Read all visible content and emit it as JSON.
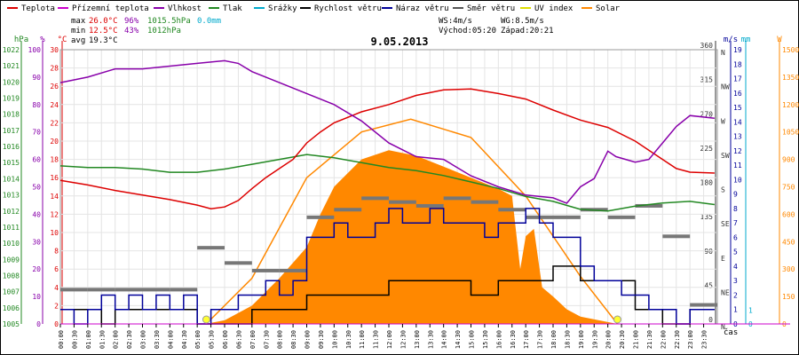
{
  "chart_data": {
    "type": "line",
    "title": "9.05.2013",
    "legend": [
      {
        "name": "Teplota",
        "color": "#dd0000"
      },
      {
        "name": "Přízemní teplota",
        "color": "#cc00cc"
      },
      {
        "name": "Vlhkost",
        "color": "#8800aa"
      },
      {
        "name": "Tlak",
        "color": "#228822"
      },
      {
        "name": "Srážky",
        "color": "#00aacc"
      },
      {
        "name": "Rychlost větru",
        "color": "#000000"
      },
      {
        "name": "Náraz větru",
        "color": "#000099"
      },
      {
        "name": "Směr větru",
        "color": "#555555"
      },
      {
        "name": "UV index",
        "color": "#dddd00"
      },
      {
        "name": "Solar",
        "color": "#ff8800"
      }
    ],
    "stats": {
      "max": {
        "label": "max",
        "temp": "26.0°C",
        "hum": "96%",
        "press": "1015.5hPa",
        "rain": "0.0mm"
      },
      "min": {
        "label": "min",
        "temp": "12.5°C",
        "hum": "43%",
        "press": "1012hPa"
      },
      "avg": {
        "label": "avg",
        "temp": "19.3°C"
      },
      "ws": "WS:4m/s",
      "wg": "WG:8.5m/s",
      "sunrise": "Východ:05:20",
      "sunset": "Západ:20:21"
    },
    "axes": {
      "hpa": {
        "label": "hPa",
        "ticks": [
          "1005",
          "1006",
          "1007",
          "1008",
          "1009",
          "1010",
          "1011",
          "1012",
          "1013",
          "1014",
          "1015",
          "1016",
          "1017",
          "1018",
          "1019",
          "1020",
          "1021",
          "1022"
        ]
      },
      "pct": {
        "label": "%",
        "ticks": [
          "0",
          "10",
          "20",
          "30",
          "40",
          "50",
          "60",
          "70",
          "80",
          "90",
          "100"
        ]
      },
      "degc": {
        "label": "°C",
        "ticks": [
          "0",
          "2",
          "4",
          "6",
          "8",
          "10",
          "12",
          "14",
          "16",
          "18",
          "20",
          "22",
          "24",
          "26",
          "28",
          "30"
        ]
      },
      "wdir": {
        "ticks": [
          "N",
          "NE",
          "E",
          "SE",
          "S",
          "SW",
          "W",
          "NW",
          "N"
        ],
        "degrees": [
          "0",
          "45",
          "90",
          "135",
          "180",
          "225",
          "270",
          "315",
          "360"
        ]
      },
      "ms": {
        "label": "m/s",
        "ticks": [
          "0",
          "1",
          "2",
          "3",
          "4",
          "5",
          "6",
          "7",
          "8",
          "9",
          "10",
          "11",
          "12",
          "13",
          "14",
          "15",
          "16",
          "17",
          "18",
          "19"
        ]
      },
      "mm": {
        "label": "mm",
        "ticks": [
          "0",
          "1"
        ]
      },
      "w": {
        "label": "W",
        "ticks": [
          "0",
          "150",
          "300",
          "450",
          "600",
          "750",
          "900",
          "1050",
          "1200",
          "1350",
          "1500"
        ]
      },
      "x": {
        "label": "čas",
        "ticks": [
          "00:00",
          "00:30",
          "01:00",
          "01:30",
          "02:00",
          "02:30",
          "03:00",
          "03:30",
          "04:00",
          "04:30",
          "05:00",
          "05:30",
          "06:00",
          "06:30",
          "07:00",
          "07:30",
          "08:00",
          "08:30",
          "09:00",
          "09:30",
          "10:00",
          "10:30",
          "11:00",
          "11:30",
          "12:00",
          "12:30",
          "13:00",
          "13:30",
          "14:00",
          "14:30",
          "15:00",
          "15:30",
          "16:00",
          "16:30",
          "17:00",
          "17:30",
          "18:00",
          "18:30",
          "19:00",
          "19:30",
          "20:00",
          "20:30",
          "21:00",
          "21:30",
          "22:00",
          "22:30",
          "23:00",
          "23:30"
        ]
      }
    },
    "x_unit": "hours",
    "series": [
      {
        "name": "Teplota",
        "unit": "°C",
        "color": "#dd0000",
        "points": [
          [
            0,
            15.7
          ],
          [
            1,
            15.2
          ],
          [
            2,
            14.6
          ],
          [
            3,
            14.1
          ],
          [
            4,
            13.6
          ],
          [
            5,
            13.0
          ],
          [
            5.5,
            12.6
          ],
          [
            6,
            12.8
          ],
          [
            6.5,
            13.5
          ],
          [
            7,
            14.8
          ],
          [
            7.5,
            16.0
          ],
          [
            8,
            17.0
          ],
          [
            8.5,
            18.0
          ],
          [
            9,
            19.8
          ],
          [
            9.5,
            21.0
          ],
          [
            10,
            22.0
          ],
          [
            11,
            23.2
          ],
          [
            12,
            24.0
          ],
          [
            13,
            25.0
          ],
          [
            14,
            25.6
          ],
          [
            15,
            25.7
          ],
          [
            16,
            25.2
          ],
          [
            17,
            24.6
          ],
          [
            18,
            23.4
          ],
          [
            19,
            22.3
          ],
          [
            20,
            21.5
          ],
          [
            21,
            20.0
          ],
          [
            22,
            18.0
          ],
          [
            22.5,
            17.0
          ],
          [
            23,
            16.6
          ],
          [
            23.9,
            16.5
          ]
        ]
      },
      {
        "name": "Vlhkost",
        "unit": "%",
        "color": "#8800aa",
        "points": [
          [
            0,
            88
          ],
          [
            1,
            90
          ],
          [
            2,
            93
          ],
          [
            3,
            93
          ],
          [
            4,
            94
          ],
          [
            5,
            95
          ],
          [
            6,
            96
          ],
          [
            6.5,
            95
          ],
          [
            7,
            92
          ],
          [
            8,
            88
          ],
          [
            9,
            84
          ],
          [
            10,
            80
          ],
          [
            11,
            74
          ],
          [
            12,
            66
          ],
          [
            13,
            61
          ],
          [
            14,
            60
          ],
          [
            15,
            54
          ],
          [
            16,
            50
          ],
          [
            17,
            47
          ],
          [
            18,
            46
          ],
          [
            18.5,
            44
          ],
          [
            19,
            50
          ],
          [
            19.5,
            53
          ],
          [
            20,
            63
          ],
          [
            20.3,
            61
          ],
          [
            21,
            59
          ],
          [
            21.5,
            60
          ],
          [
            22,
            66
          ],
          [
            22.5,
            72
          ],
          [
            23,
            76
          ],
          [
            23.9,
            75
          ]
        ]
      },
      {
        "name": "Tlak",
        "unit": "hPa",
        "color": "#228822",
        "points": [
          [
            0,
            1014.8
          ],
          [
            1,
            1014.7
          ],
          [
            2,
            1014.7
          ],
          [
            3,
            1014.6
          ],
          [
            4,
            1014.4
          ],
          [
            5,
            1014.4
          ],
          [
            6,
            1014.6
          ],
          [
            7,
            1014.9
          ],
          [
            8,
            1015.2
          ],
          [
            9,
            1015.5
          ],
          [
            10,
            1015.3
          ],
          [
            11,
            1015.0
          ],
          [
            12,
            1014.7
          ],
          [
            13,
            1014.5
          ],
          [
            14,
            1014.2
          ],
          [
            15,
            1013.8
          ],
          [
            16,
            1013.4
          ],
          [
            17,
            1012.9
          ],
          [
            18,
            1012.6
          ],
          [
            19,
            1012.1
          ],
          [
            20,
            1012.0
          ],
          [
            21,
            1012.3
          ],
          [
            22,
            1012.5
          ],
          [
            23,
            1012.6
          ],
          [
            23.9,
            1012.4
          ]
        ]
      },
      {
        "name": "Rychlost větru",
        "unit": "m/s",
        "color": "#000000",
        "points": [
          [
            0,
            1
          ],
          [
            1,
            1
          ],
          [
            1.5,
            0
          ],
          [
            2,
            1
          ],
          [
            3,
            1
          ],
          [
            4,
            1
          ],
          [
            5,
            0
          ],
          [
            6,
            0
          ],
          [
            7,
            1
          ],
          [
            8,
            1
          ],
          [
            9,
            2
          ],
          [
            10,
            2
          ],
          [
            11,
            2
          ],
          [
            12,
            3
          ],
          [
            13,
            3
          ],
          [
            14,
            3
          ],
          [
            15,
            2
          ],
          [
            16,
            3
          ],
          [
            17,
            3
          ],
          [
            18,
            4
          ],
          [
            19,
            3
          ],
          [
            20,
            3
          ],
          [
            21,
            1
          ],
          [
            22,
            0
          ],
          [
            23,
            1
          ],
          [
            23.9,
            1
          ]
        ]
      },
      {
        "name": "Náraz větru",
        "unit": "m/s",
        "color": "#000099",
        "points": [
          [
            0,
            1
          ],
          [
            0.5,
            0
          ],
          [
            1,
            1
          ],
          [
            1.5,
            2
          ],
          [
            2,
            1
          ],
          [
            2.5,
            2
          ],
          [
            3,
            1
          ],
          [
            3.5,
            2
          ],
          [
            4,
            1
          ],
          [
            4.5,
            2
          ],
          [
            5,
            0
          ],
          [
            5.5,
            1
          ],
          [
            6,
            1
          ],
          [
            6.5,
            2
          ],
          [
            7,
            2
          ],
          [
            7.5,
            3
          ],
          [
            8,
            2
          ],
          [
            8.5,
            3
          ],
          [
            9,
            6
          ],
          [
            9.5,
            6
          ],
          [
            10,
            7
          ],
          [
            10.5,
            6
          ],
          [
            11,
            6
          ],
          [
            11.5,
            7
          ],
          [
            12,
            8
          ],
          [
            12.5,
            7
          ],
          [
            13,
            7
          ],
          [
            13.5,
            8
          ],
          [
            14,
            7
          ],
          [
            14.5,
            7
          ],
          [
            15,
            7
          ],
          [
            15.5,
            6
          ],
          [
            16,
            7
          ],
          [
            16.5,
            7
          ],
          [
            17,
            8
          ],
          [
            17.5,
            7
          ],
          [
            18,
            6
          ],
          [
            18.5,
            6
          ],
          [
            19,
            4
          ],
          [
            19.5,
            3
          ],
          [
            20,
            3
          ],
          [
            20.5,
            2
          ],
          [
            21,
            2
          ],
          [
            21.5,
            1
          ],
          [
            22,
            1
          ],
          [
            22.5,
            0
          ],
          [
            23,
            1
          ],
          [
            23.9,
            1
          ]
        ]
      },
      {
        "name": "Solar",
        "unit": "W",
        "color": "#ff8800",
        "points": [
          [
            5.3,
            0
          ],
          [
            6,
            20
          ],
          [
            7,
            100
          ],
          [
            8,
            250
          ],
          [
            9,
            420
          ],
          [
            9.5,
            600
          ],
          [
            10,
            750
          ],
          [
            11,
            900
          ],
          [
            12,
            950
          ],
          [
            13,
            920
          ],
          [
            14,
            860
          ],
          [
            15,
            800
          ],
          [
            16,
            740
          ],
          [
            16.5,
            700
          ],
          [
            16.8,
            300
          ],
          [
            17,
            480
          ],
          [
            17.3,
            520
          ],
          [
            17.6,
            200
          ],
          [
            18,
            150
          ],
          [
            18.5,
            80
          ],
          [
            19,
            40
          ],
          [
            20,
            10
          ],
          [
            20.35,
            0
          ]
        ]
      },
      {
        "name": "Solar max",
        "unit": "W",
        "color": "#ff8800",
        "points": [
          [
            5.33,
            0
          ],
          [
            7,
            250
          ],
          [
            9,
            800
          ],
          [
            11,
            1050
          ],
          [
            12.8,
            1120
          ],
          [
            15,
            1020
          ],
          [
            17,
            700
          ],
          [
            19,
            260
          ],
          [
            20.35,
            0
          ]
        ]
      }
    ],
    "wind_direction": [
      [
        0,
        45
      ],
      [
        1,
        45
      ],
      [
        2,
        45
      ],
      [
        3,
        45
      ],
      [
        4,
        45
      ],
      [
        5,
        100
      ],
      [
        6,
        80
      ],
      [
        7,
        70
      ],
      [
        8,
        70
      ],
      [
        9,
        140
      ],
      [
        9.5,
        140
      ],
      [
        10,
        150
      ],
      [
        11,
        165
      ],
      [
        12,
        160
      ],
      [
        13,
        155
      ],
      [
        14,
        165
      ],
      [
        15,
        160
      ],
      [
        16,
        150
      ],
      [
        17,
        140
      ],
      [
        18,
        140
      ],
      [
        19,
        150
      ],
      [
        20,
        140
      ],
      [
        21,
        155
      ],
      [
        22,
        115
      ],
      [
        23,
        25
      ],
      [
        23.9,
        25
      ]
    ],
    "sun_markers": [
      "05:20",
      "20:21"
    ]
  }
}
